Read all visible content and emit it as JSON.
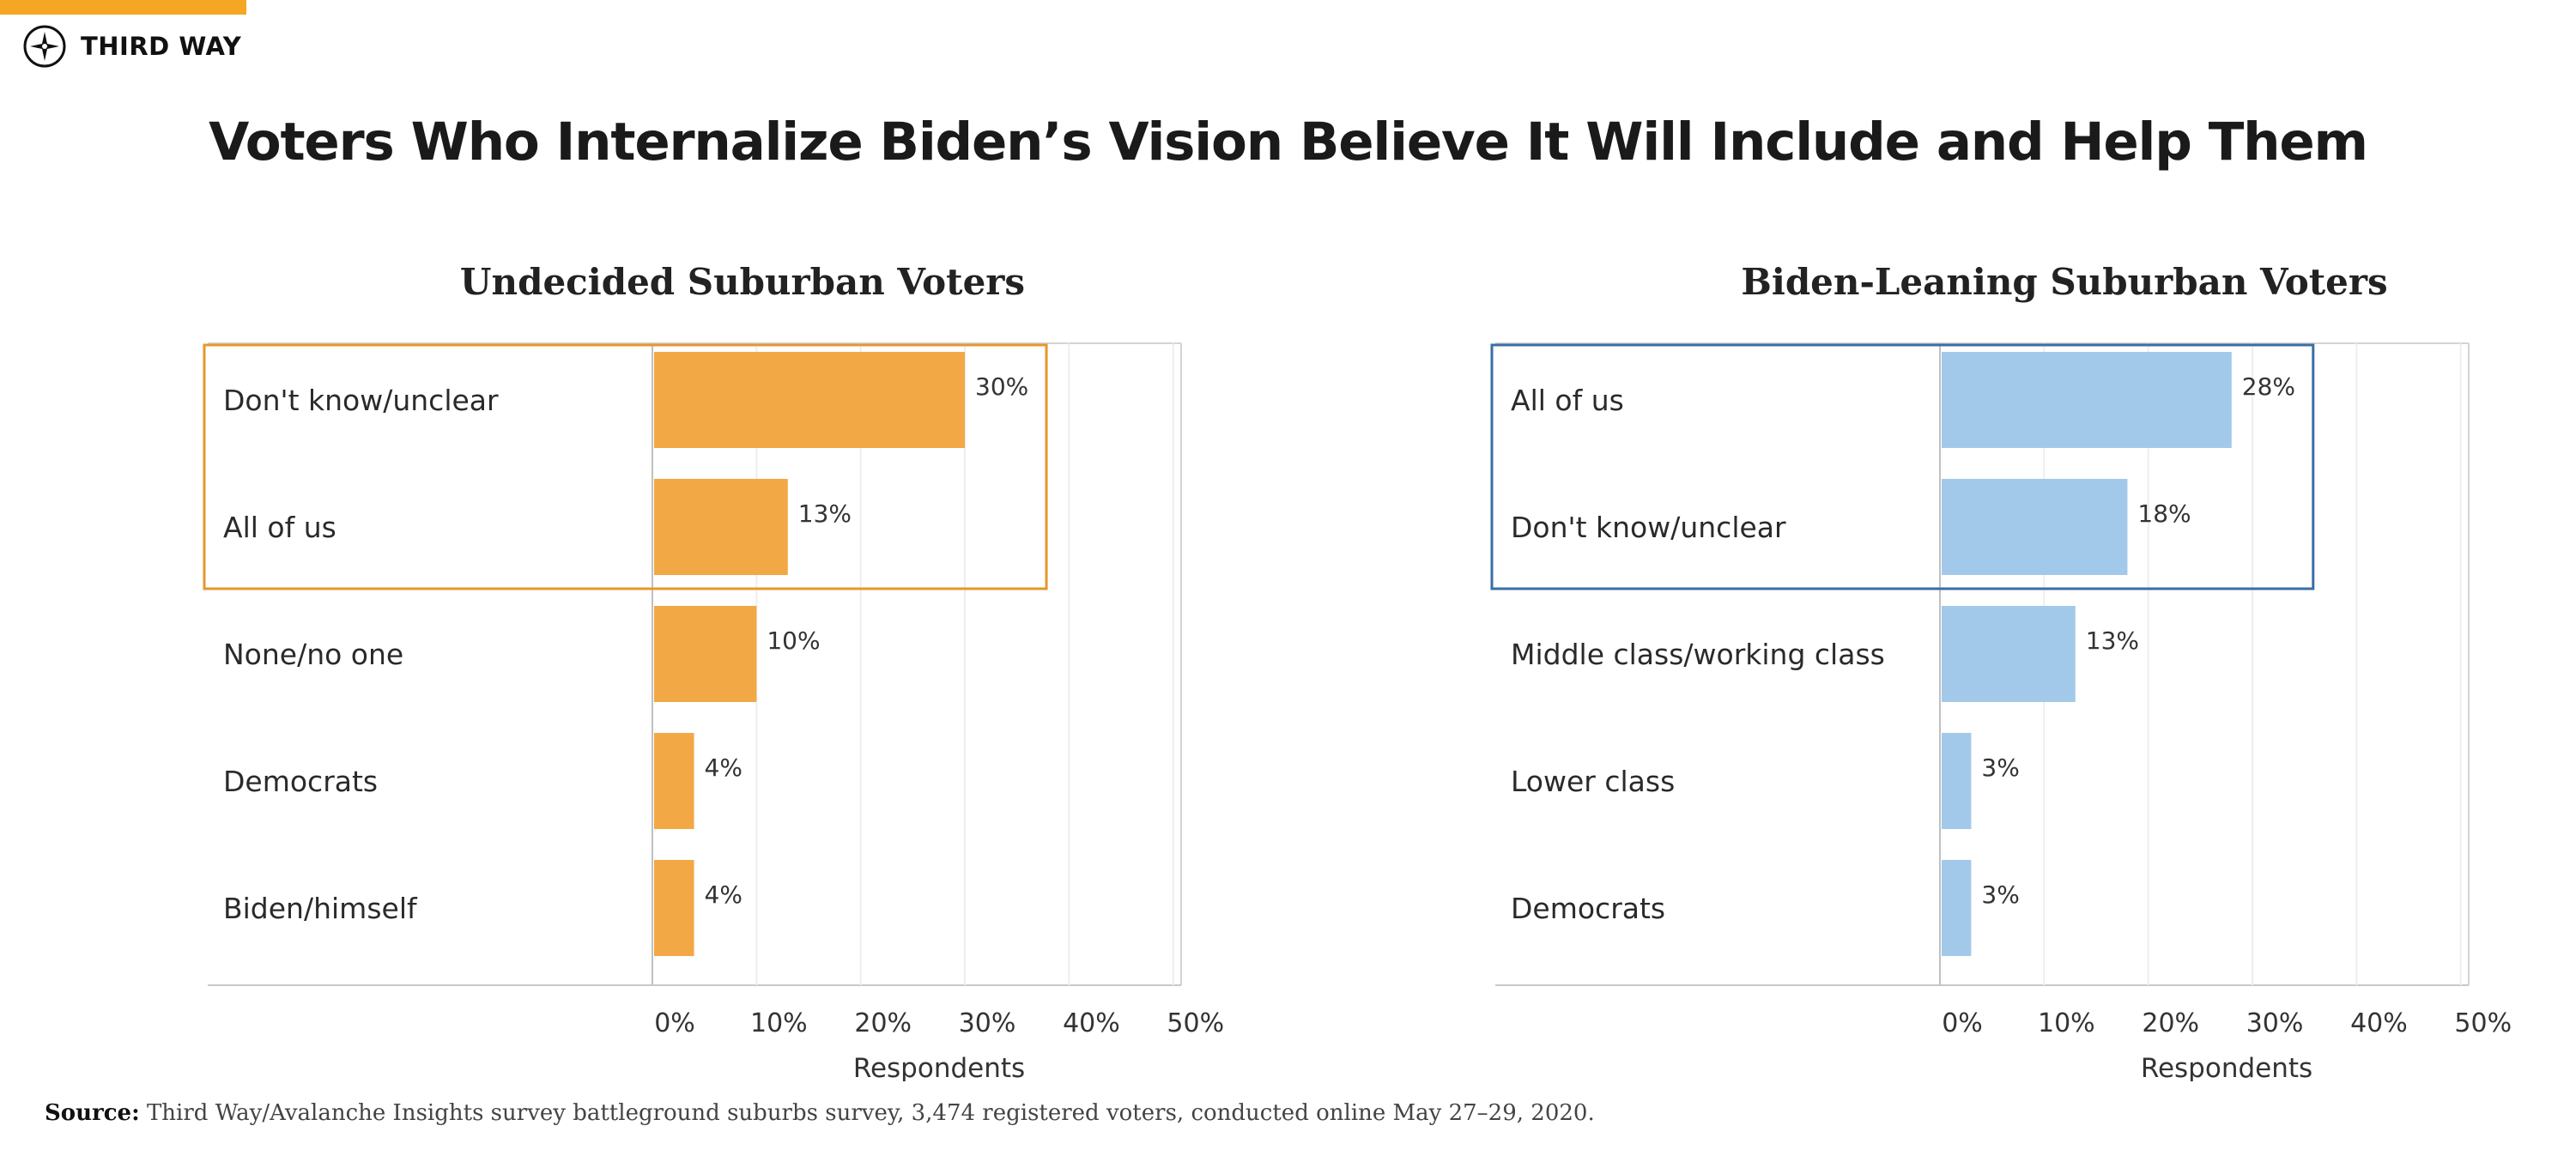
{
  "brand": {
    "name": "THIRD WAY",
    "accent_color": "#f5a623"
  },
  "title": "Voters Who Internalize Biden’s Vision Believe It Will Include and Help Them",
  "source": {
    "label": "Source:",
    "text": "Third Way/Avalanche Insights survey battleground suburbs survey, 3,474 registered voters, conducted online May 27–29, 2020."
  },
  "chart_data": [
    {
      "type": "bar",
      "orientation": "horizontal",
      "title": "Undecided Suburban Voters",
      "categories": [
        "Don't know/unclear",
        "All of us",
        "None/no one",
        "Democrats",
        "Biden/himself"
      ],
      "values": [
        30,
        13,
        10,
        4,
        4
      ],
      "value_labels": [
        "30%",
        "13%",
        "10%",
        "4%",
        "4%"
      ],
      "xlabel": "Respondents",
      "ylabel": "",
      "xlim": [
        0,
        50
      ],
      "xticks": [
        "0%",
        "10%",
        "20%",
        "30%",
        "40%",
        "50%"
      ],
      "bar_color": "#f2a844",
      "highlight_color": "#e8962e",
      "highlight_rows": [
        0,
        1
      ],
      "grid": true
    },
    {
      "type": "bar",
      "orientation": "horizontal",
      "title": "Biden-Leaning Suburban Voters",
      "categories": [
        "All of us",
        "Don't know/unclear",
        "Middle class/working class",
        "Lower class",
        "Democrats"
      ],
      "values": [
        28,
        18,
        13,
        3,
        3
      ],
      "value_labels": [
        "28%",
        "18%",
        "13%",
        "3%",
        "3%"
      ],
      "xlabel": "Respondents",
      "ylabel": "",
      "xlim": [
        0,
        50
      ],
      "xticks": [
        "0%",
        "10%",
        "20%",
        "30%",
        "40%",
        "50%"
      ],
      "bar_color": "#a3c9ea",
      "highlight_color": "#3a6ea5",
      "highlight_rows": [
        0,
        1
      ],
      "grid": true
    }
  ]
}
